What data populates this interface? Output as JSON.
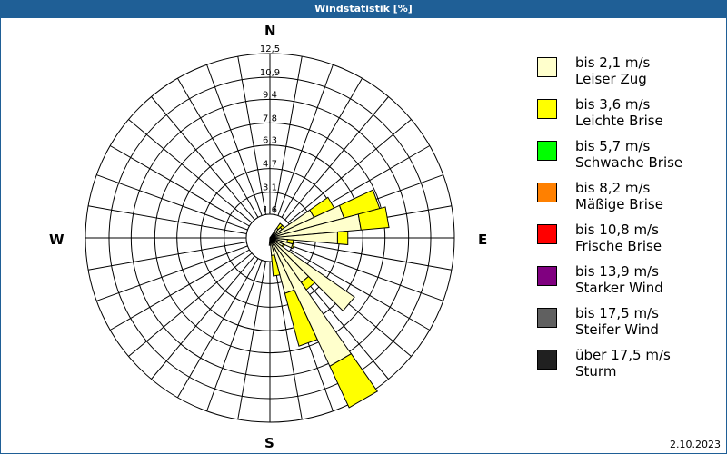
{
  "title": "Windstatistik [%]",
  "date": "2.10.2023",
  "directions": {
    "n": "N",
    "e": "E",
    "s": "S",
    "w": "W"
  },
  "legend": [
    {
      "range": "bis 2,1 m/s",
      "name": "Leiser Zug",
      "color": "#ffffcc"
    },
    {
      "range": "bis 3,6 m/s",
      "name": "Leichte Brise",
      "color": "#ffff00"
    },
    {
      "range": "bis 5,7 m/s",
      "name": "Schwache Brise",
      "color": "#00ff00"
    },
    {
      "range": "bis 8,2 m/s",
      "name": "Mäßige Brise",
      "color": "#ff8000"
    },
    {
      "range": "bis 10,8 m/s",
      "name": "Frische Brise",
      "color": "#ff0000"
    },
    {
      "range": "bis 13,9 m/s",
      "name": "Starker Wind",
      "color": "#800080"
    },
    {
      "range": "bis 17,5 m/s",
      "name": "Steifer Wind",
      "color": "#606060"
    },
    {
      "range": "über 17,5 m/s",
      "name": "Sturm",
      "color": "#202020"
    }
  ],
  "chart_data": {
    "type": "wind-rose",
    "title": "Windstatistik [%]",
    "unit": "%",
    "ring_labels": [
      "1,6",
      "3,1",
      "4,7",
      "6,3",
      "7,8",
      "9,4",
      "10,9",
      "12,5"
    ],
    "ring_values": [
      1.6,
      3.1,
      4.7,
      6.3,
      7.8,
      9.4,
      10.9,
      12.5
    ],
    "rmax": 12.5,
    "sector_width_deg": 10,
    "bearings": [
      40,
      50,
      60,
      70,
      80,
      90,
      100,
      110,
      120,
      130,
      140,
      150,
      160,
      170,
      180
    ],
    "series": [
      {
        "name": "bis 2,1 m/s",
        "values": [
          0.8,
          1.0,
          3.3,
          5.2,
          6.2,
          4.6,
          1.2,
          1.6,
          1.0,
          7.0,
          3.7,
          9.6,
          3.9,
          1.2,
          0.5
        ]
      },
      {
        "name": "bis 3,6 m/s",
        "values": [
          0.4,
          0.2,
          1.5,
          2.5,
          1.9,
          0.7,
          0.4,
          0.1,
          0.1,
          0.0,
          0.6,
          3.1,
          3.7,
          1.4,
          0.0
        ]
      }
    ],
    "legend_position": "right"
  }
}
